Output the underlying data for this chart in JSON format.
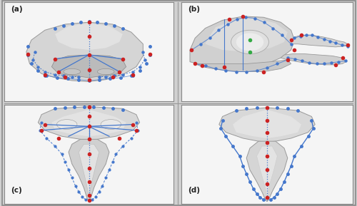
{
  "figure_width": 5.0,
  "figure_height": 2.89,
  "dpi": 100,
  "outer_bg": "#d0d0d0",
  "panel_bg": "#f5f5f5",
  "border_color": "#888888",
  "outer_border_color": "#888888",
  "panel_labels": [
    "(a)",
    "(b)",
    "(c)",
    "(d)"
  ],
  "label_fontsize": 7.5,
  "label_color": "#222222",
  "divider_color": "#999999",
  "blue": "#4477cc",
  "red": "#cc2222",
  "green": "#33aa44",
  "skull_fill": "#c8c8c8",
  "skull_edge": "#999999",
  "skull_light": "#e5e5e5",
  "skull_dark": "#aaaaaa"
}
